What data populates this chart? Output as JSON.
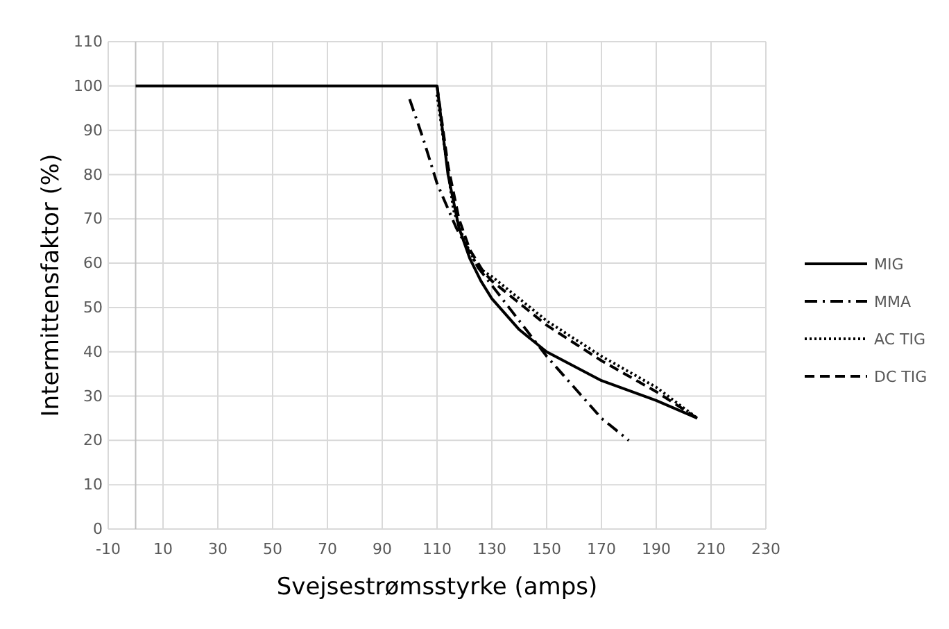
{
  "chart_data": {
    "type": "line",
    "xlabel": "Svejsestrømsstyrke (amps)",
    "ylabel": "Intermittensfaktor (%)",
    "xlim": [
      -10,
      230
    ],
    "xticks": [
      -10,
      10,
      30,
      50,
      70,
      90,
      110,
      130,
      150,
      170,
      190,
      210,
      230
    ],
    "ylim": [
      0,
      110
    ],
    "yticks": [
      0,
      10,
      20,
      30,
      40,
      50,
      60,
      70,
      80,
      90,
      100,
      110
    ],
    "grid": true,
    "legend": "right",
    "series": [
      {
        "name": "MIG",
        "color": "#000000",
        "line_style": "solid",
        "x": [
          0,
          110,
          114,
          118,
          122,
          126,
          130,
          140,
          150,
          170,
          190,
          205
        ],
        "values": [
          100,
          100,
          80,
          68,
          61,
          56,
          52,
          45,
          40,
          33.5,
          29,
          25
        ]
      },
      {
        "name": "MMA",
        "color": "#000000",
        "line_style": "dashdot",
        "x": [
          100,
          105,
          110,
          117,
          125,
          130,
          140,
          150,
          160,
          170,
          180
        ],
        "values": [
          97,
          88,
          78,
          68,
          59,
          55,
          47,
          39,
          32,
          25,
          20
        ]
      },
      {
        "name": "AC TIG",
        "color": "#000000",
        "line_style": "dotted",
        "x": [
          110,
          113,
          116,
          120,
          125,
          130,
          150,
          170,
          190,
          205
        ],
        "values": [
          98,
          85,
          72,
          65,
          59,
          57,
          47,
          39,
          32,
          25
        ]
      },
      {
        "name": "DC TIG",
        "color": "#000000",
        "line_style": "dashed",
        "x": [
          110,
          114,
          118,
          122,
          127,
          130,
          150,
          170,
          190,
          205
        ],
        "values": [
          100,
          82,
          70,
          63,
          58,
          56,
          46,
          38,
          31,
          25
        ]
      }
    ]
  }
}
